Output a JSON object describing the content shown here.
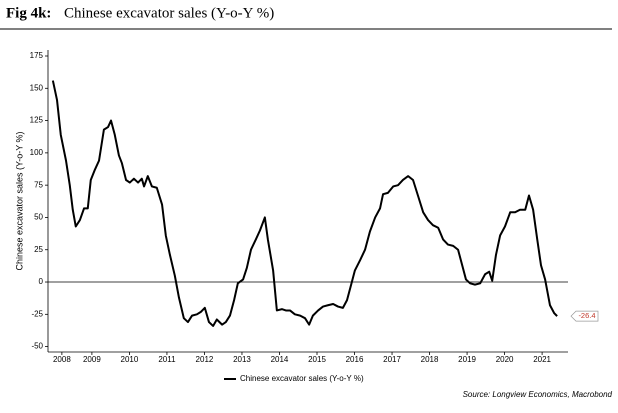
{
  "chart_data": {
    "type": "line",
    "figure_label": "Fig 4k:",
    "title": "Chinese excavator sales (Y-o-Y %)",
    "ylabel": "Chinese excavator sales (Y-o-Y %)",
    "source": "Source: Longview Economics, Macrobond",
    "xlim": [
      2008.33,
      2022.19
    ],
    "xticks": [
      {
        "value": 2008.7,
        "label": "2008"
      },
      {
        "value": 2009.5,
        "label": "2009"
      },
      {
        "value": 2010.5,
        "label": "2010"
      },
      {
        "value": 2011.5,
        "label": "2011"
      },
      {
        "value": 2012.5,
        "label": "2012"
      },
      {
        "value": 2013.5,
        "label": "2013"
      },
      {
        "value": 2014.5,
        "label": "2014"
      },
      {
        "value": 2015.5,
        "label": "2015"
      },
      {
        "value": 2016.5,
        "label": "2016"
      },
      {
        "value": 2017.5,
        "label": "2017"
      },
      {
        "value": 2018.5,
        "label": "2018"
      },
      {
        "value": 2019.5,
        "label": "2019"
      },
      {
        "value": 2020.5,
        "label": "2020"
      },
      {
        "value": 2021.5,
        "label": "2021"
      }
    ],
    "ylim": [
      -50,
      175
    ],
    "yticks": [
      -50,
      -25,
      0,
      25,
      50,
      75,
      100,
      125,
      150,
      175
    ],
    "x": [
      2008.46,
      2008.57,
      2008.67,
      2008.81,
      2008.91,
      2008.99,
      2009.07,
      2009.18,
      2009.29,
      2009.39,
      2009.47,
      2009.58,
      2009.69,
      2009.82,
      2009.93,
      2010.01,
      2010.11,
      2010.22,
      2010.3,
      2010.41,
      2010.51,
      2010.62,
      2010.73,
      2010.83,
      2010.89,
      2010.99,
      2011.1,
      2011.23,
      2011.37,
      2011.47,
      2011.58,
      2011.71,
      2011.82,
      2011.95,
      2012.06,
      2012.17,
      2012.3,
      2012.41,
      2012.51,
      2012.62,
      2012.73,
      2012.83,
      2012.97,
      2013.07,
      2013.18,
      2013.29,
      2013.39,
      2013.53,
      2013.63,
      2013.74,
      2013.87,
      2013.98,
      2014.11,
      2014.19,
      2014.33,
      2014.43,
      2014.57,
      2014.67,
      2014.78,
      2014.91,
      2015.05,
      2015.18,
      2015.29,
      2015.39,
      2015.53,
      2015.66,
      2015.79,
      2015.93,
      2016.06,
      2016.19,
      2016.3,
      2016.41,
      2016.51,
      2016.65,
      2016.78,
      2016.91,
      2017.05,
      2017.18,
      2017.26,
      2017.39,
      2017.53,
      2017.66,
      2017.79,
      2017.93,
      2018.06,
      2018.19,
      2018.33,
      2018.46,
      2018.59,
      2018.73,
      2018.86,
      2018.99,
      2019.13,
      2019.26,
      2019.37,
      2019.47,
      2019.58,
      2019.71,
      2019.85,
      2019.98,
      2020.09,
      2020.17,
      2020.27,
      2020.38,
      2020.51,
      2020.65,
      2020.78,
      2020.91,
      2021.05,
      2021.15,
      2021.26,
      2021.37,
      2021.47,
      2021.58,
      2021.71,
      2021.82,
      2021.9
    ],
    "series": [
      {
        "name": "Chinese excavator sales (Y-o-Y %)",
        "color": "#000000",
        "values": [
          156,
          141,
          114,
          94,
          75,
          56,
          43,
          48,
          57,
          57,
          79,
          87,
          94,
          118,
          120,
          125,
          114,
          98,
          92,
          79,
          77,
          80,
          77,
          80,
          74,
          82,
          74,
          73,
          60,
          36,
          21,
          5,
          -12,
          -28,
          -31,
          -26,
          -25,
          -23,
          -20,
          -31,
          -34,
          -29,
          -33,
          -31,
          -26,
          -14,
          -1,
          2,
          11,
          25,
          33,
          40,
          50,
          33,
          9,
          -22,
          -21,
          -22,
          -22,
          -25,
          -26,
          -28,
          -33,
          -26,
          -22,
          -19,
          -18,
          -17,
          -19,
          -20,
          -14,
          -2,
          9,
          17,
          25,
          39,
          50,
          57,
          68,
          69,
          74,
          75,
          79,
          82,
          79,
          67,
          54,
          48,
          44,
          42,
          33,
          29,
          28,
          25,
          13,
          2,
          -1,
          -2,
          -1,
          6,
          8,
          1,
          21,
          36,
          43,
          54,
          54,
          56,
          56,
          67,
          56,
          33,
          13,
          2,
          -18,
          -24,
          -26.4
        ]
      }
    ]
  }
}
